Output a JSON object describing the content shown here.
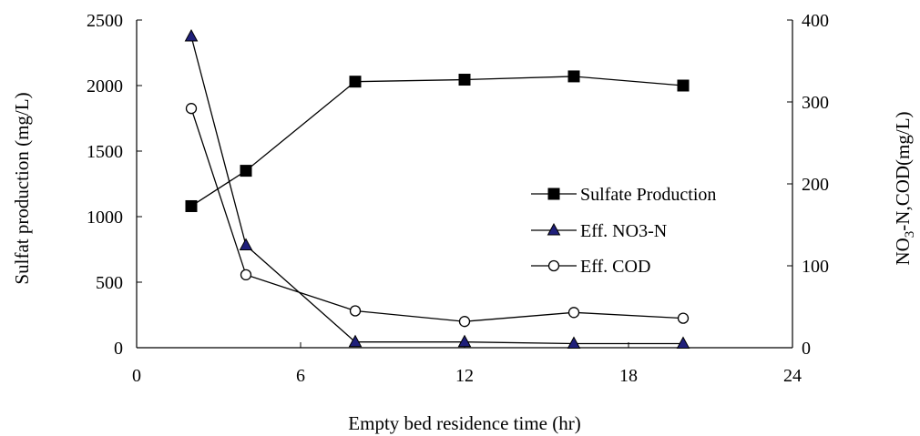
{
  "chart_data": {
    "type": "line",
    "xlabel": "Empty bed residence time (hr)",
    "ylabel_left": "Sulfat production (mg/L)",
    "ylabel_right": {
      "prefix": "NO",
      "subscript": "3",
      "suffix": "-N,COD(mg/L)"
    },
    "xlim": [
      0,
      24
    ],
    "ylim_left": [
      0,
      2500
    ],
    "ylim_right": [
      0,
      400
    ],
    "xticks": [
      0,
      6,
      12,
      18,
      24
    ],
    "yticks_left": [
      0,
      500,
      1000,
      1500,
      2000,
      2500
    ],
    "yticks_right": [
      0,
      100,
      200,
      300,
      400
    ],
    "grid": false,
    "legend_position": "center-right",
    "series": [
      {
        "name": "Sulfate Production",
        "axis": "left",
        "marker": "filled-square",
        "color": "#000000",
        "x": [
          2,
          4,
          8,
          12,
          16,
          20
        ],
        "y": [
          1080,
          1350,
          2030,
          2045,
          2070,
          2000
        ]
      },
      {
        "name": "Eff. NO3-N",
        "axis": "right",
        "marker": "filled-triangle",
        "color": "#1f1f7a",
        "x": [
          2,
          4,
          8,
          12,
          16,
          20
        ],
        "y": [
          380,
          125,
          7,
          7,
          5,
          5
        ]
      },
      {
        "name": "Eff. COD",
        "axis": "right",
        "marker": "open-circle",
        "color": "#000000",
        "x": [
          2,
          4,
          8,
          12,
          16,
          20
        ],
        "y": [
          292,
          89,
          45,
          32,
          43,
          36
        ]
      }
    ]
  }
}
